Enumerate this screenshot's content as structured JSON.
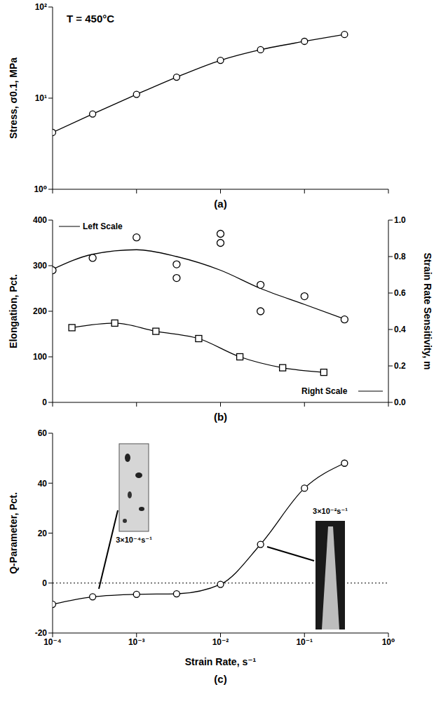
{
  "chart_data": [
    {
      "type": "line",
      "title": "(a)",
      "annotations": [
        "T = 450°C"
      ],
      "y_label": "Stress, σ0.1, MPa",
      "x": [
        0.0001,
        0.0003,
        0.001,
        0.003,
        0.01,
        0.03,
        0.1,
        0.3
      ],
      "values": [
        4.2,
        6.7,
        11,
        17,
        26,
        34,
        42,
        50
      ],
      "color": "#000000",
      "marker": "circle",
      "line_style": "solid",
      "log": true,
      "tick_labels": "y",
      "xlim": [
        0.0001,
        1
      ],
      "xticks": [
        {
          "value": 0.0001,
          "label": "10⁻⁴"
        },
        {
          "value": 0.001,
          "label": "10⁻³"
        },
        {
          "value": 0.01,
          "label": "10⁻²"
        },
        {
          "value": 0.1,
          "label": "10⁻¹"
        },
        {
          "value": 1,
          "label": "10⁰"
        }
      ],
      "ylim": [
        1,
        100
      ],
      "yticks": [
        {
          "value": 1,
          "label": "10⁰"
        },
        {
          "value": 10,
          "label": "10¹"
        },
        {
          "value": 100,
          "label": "10²"
        }
      ]
    },
    {
      "type": "scatter",
      "title": "(b)",
      "annotations": [
        "Left Scale",
        "Right Scale"
      ],
      "y_label": "Elongation, Pct.",
      "y2_label": "Strain Rate Sensitivity, m",
      "log": "x",
      "tick_labels": "y",
      "xlim": [
        0.0001,
        1
      ],
      "xticks": [
        {
          "value": 0.0001,
          "label": "10⁻⁴"
        },
        {
          "value": 0.001,
          "label": "10⁻³"
        },
        {
          "value": 0.01,
          "label": "10⁻²"
        },
        {
          "value": 0.1,
          "label": "10⁻¹"
        },
        {
          "value": 1,
          "label": "10⁰"
        }
      ],
      "ylim": [
        0,
        400
      ],
      "yticks": [
        0,
        100,
        200,
        300,
        400
      ],
      "y2lim": [
        0,
        1
      ],
      "y2ticks": [
        {
          "value": 0,
          "label": "0.0"
        },
        0.2,
        0.4,
        0.6,
        0.8,
        {
          "value": 1,
          "label": "1.0"
        }
      ],
      "series": [
        {
          "type": "scatter",
          "marker": "circle",
          "color": "#000000",
          "x": [
            0.0001,
            0.0003,
            0.001,
            0.003,
            0.003,
            0.01,
            0.01,
            0.03,
            0.03,
            0.1,
            0.3
          ],
          "values": [
            290,
            317,
            362,
            303,
            273,
            370,
            350,
            258,
            200,
            233,
            182
          ]
        },
        {
          "type": "line",
          "marker": "none",
          "line_style": "solid",
          "color": "#000000",
          "x": [
            0.0001,
            0.0003,
            0.001,
            0.003,
            0.01,
            0.03,
            0.1,
            0.3
          ],
          "values": [
            292,
            325,
            335,
            320,
            290,
            250,
            215,
            183
          ]
        },
        {
          "type": "line",
          "marker": "square",
          "line_style": "solid",
          "color": "#000000",
          "axis": "y2",
          "x": [
            0.00017,
            0.00055,
            0.0017,
            0.0055,
            0.017,
            0.055,
            0.17
          ],
          "values": [
            0.41,
            0.435,
            0.39,
            0.35,
            0.25,
            0.19,
            0.165
          ]
        }
      ]
    },
    {
      "type": "line",
      "title": "(c)",
      "annotations": [
        "3×10⁻⁴s⁻¹",
        "3×10⁻²s⁻¹"
      ],
      "x_label": "Strain Rate, s⁻¹",
      "y_label": "Q-Parameter, Pct.",
      "x": [
        0.0001,
        0.0003,
        0.001,
        0.003,
        0.01,
        0.03,
        0.1,
        0.3
      ],
      "values": [
        -8.5,
        -5.5,
        -4.5,
        -4.3,
        -0.5,
        15.5,
        38,
        48
      ],
      "color": "#000000",
      "marker": "circle",
      "line_style": "solid",
      "log": "x",
      "hline": 0,
      "xlim": [
        0.0001,
        1
      ],
      "xticks": [
        {
          "value": 0.0001,
          "label": "10⁻⁴"
        },
        {
          "value": 0.001,
          "label": "10⁻³"
        },
        {
          "value": 0.01,
          "label": "10⁻²"
        },
        {
          "value": 0.1,
          "label": "10⁻¹"
        },
        {
          "value": 1,
          "label": "10⁰"
        }
      ],
      "ylim": [
        -20,
        60
      ],
      "yticks": [
        -20,
        0,
        20,
        40,
        60
      ]
    }
  ]
}
